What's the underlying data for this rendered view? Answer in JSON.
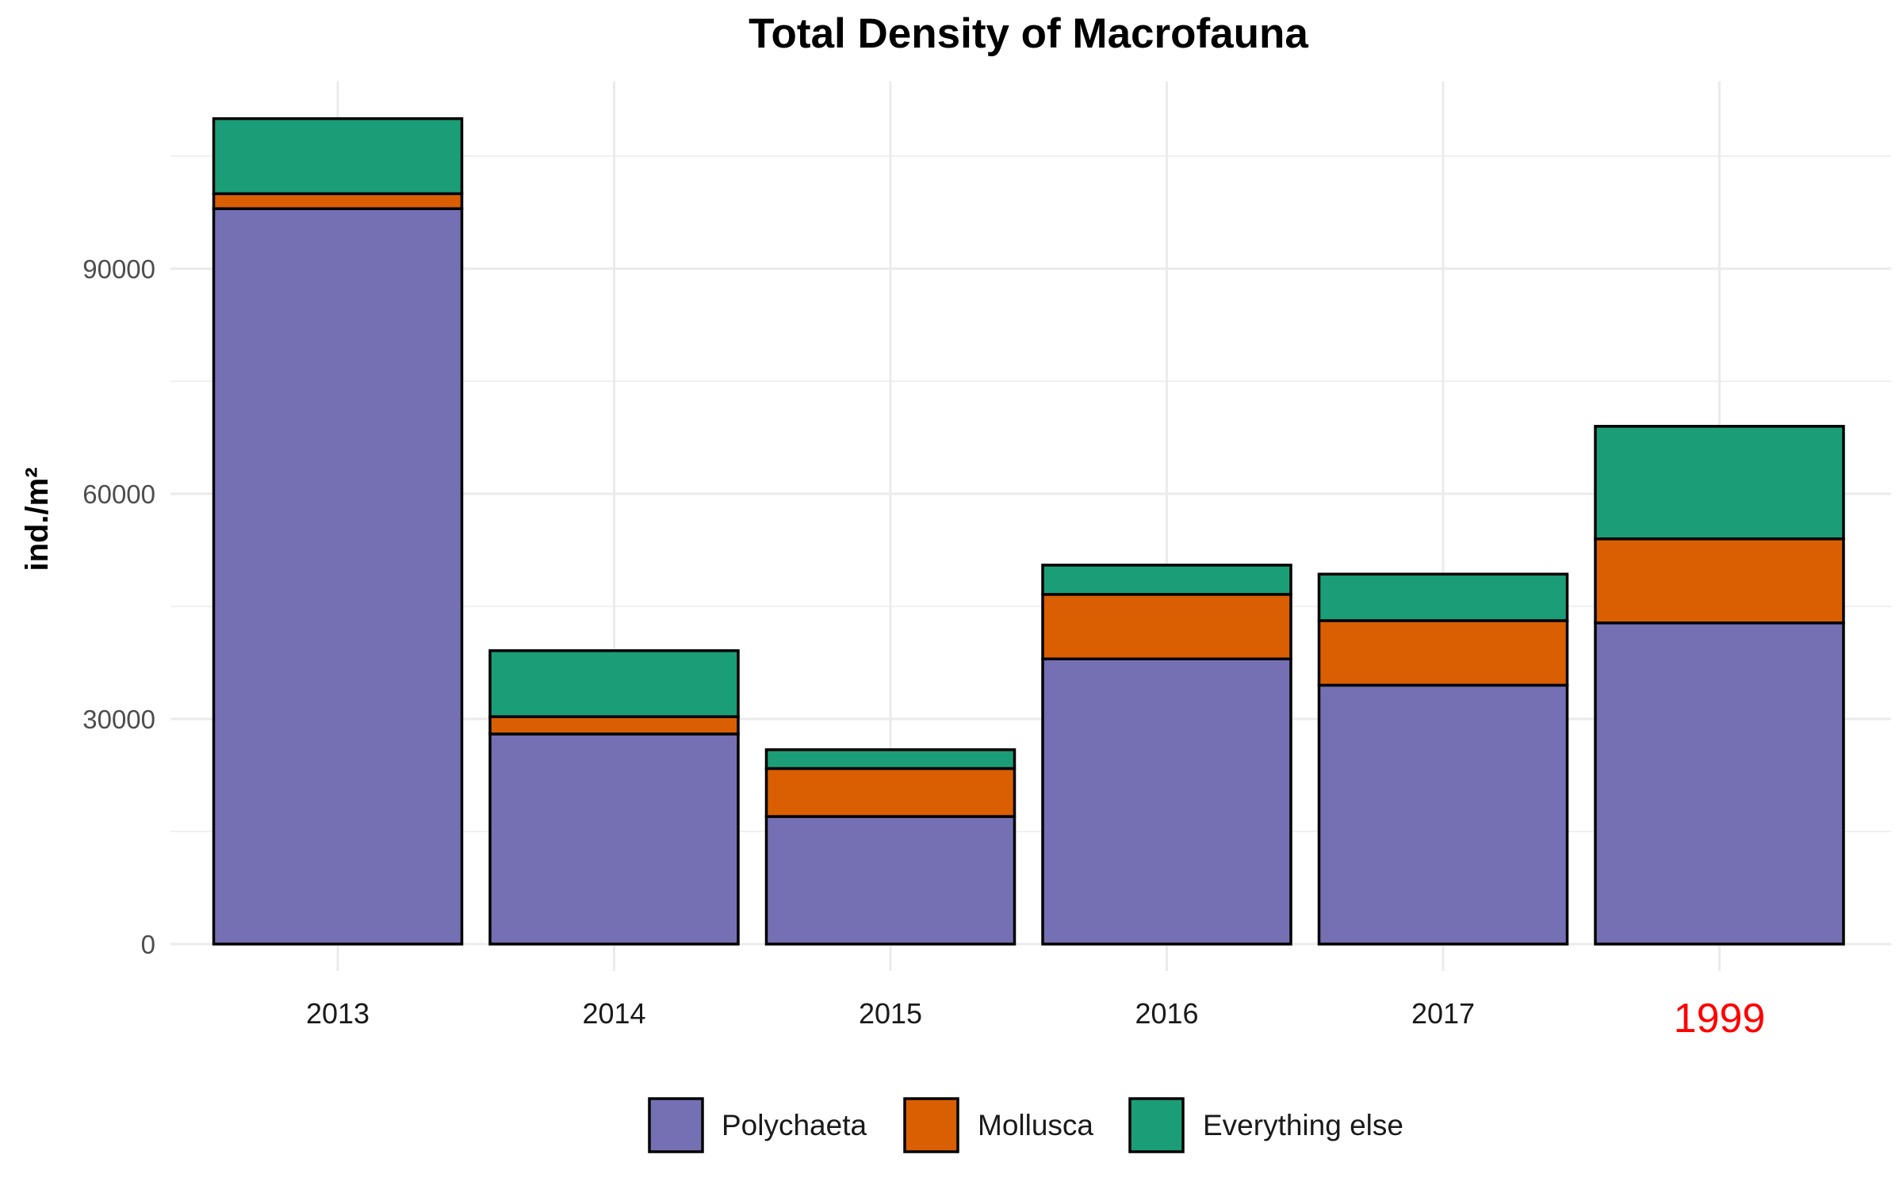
{
  "chart_data": {
    "type": "bar",
    "stacked": true,
    "title": "Total Density of Macrofauna",
    "xlabel": "",
    "ylabel": "ind./m²",
    "categories": [
      "2013",
      "2014",
      "2015",
      "2016",
      "2017",
      "1999"
    ],
    "highlighted_category": "1999",
    "highlight_color": "#ff0000",
    "series": [
      {
        "name": "Polychaeta",
        "color": "#7570b3",
        "values": [
          98000,
          28000,
          17000,
          38000,
          34500,
          42800
        ]
      },
      {
        "name": "Mollusca",
        "color": "#d95f02",
        "values": [
          2000,
          2300,
          6400,
          8600,
          8600,
          11200
        ]
      },
      {
        "name": "Everything else",
        "color": "#1b9e77",
        "values": [
          10000,
          8800,
          2500,
          3900,
          6200,
          15000
        ]
      }
    ],
    "ylim": [
      0,
      115000
    ],
    "yticks": [
      0,
      30000,
      60000,
      90000
    ],
    "ytick_labels": [
      "0",
      "30000",
      "60000",
      "90000"
    ],
    "grid": true,
    "legend_position": "bottom"
  }
}
